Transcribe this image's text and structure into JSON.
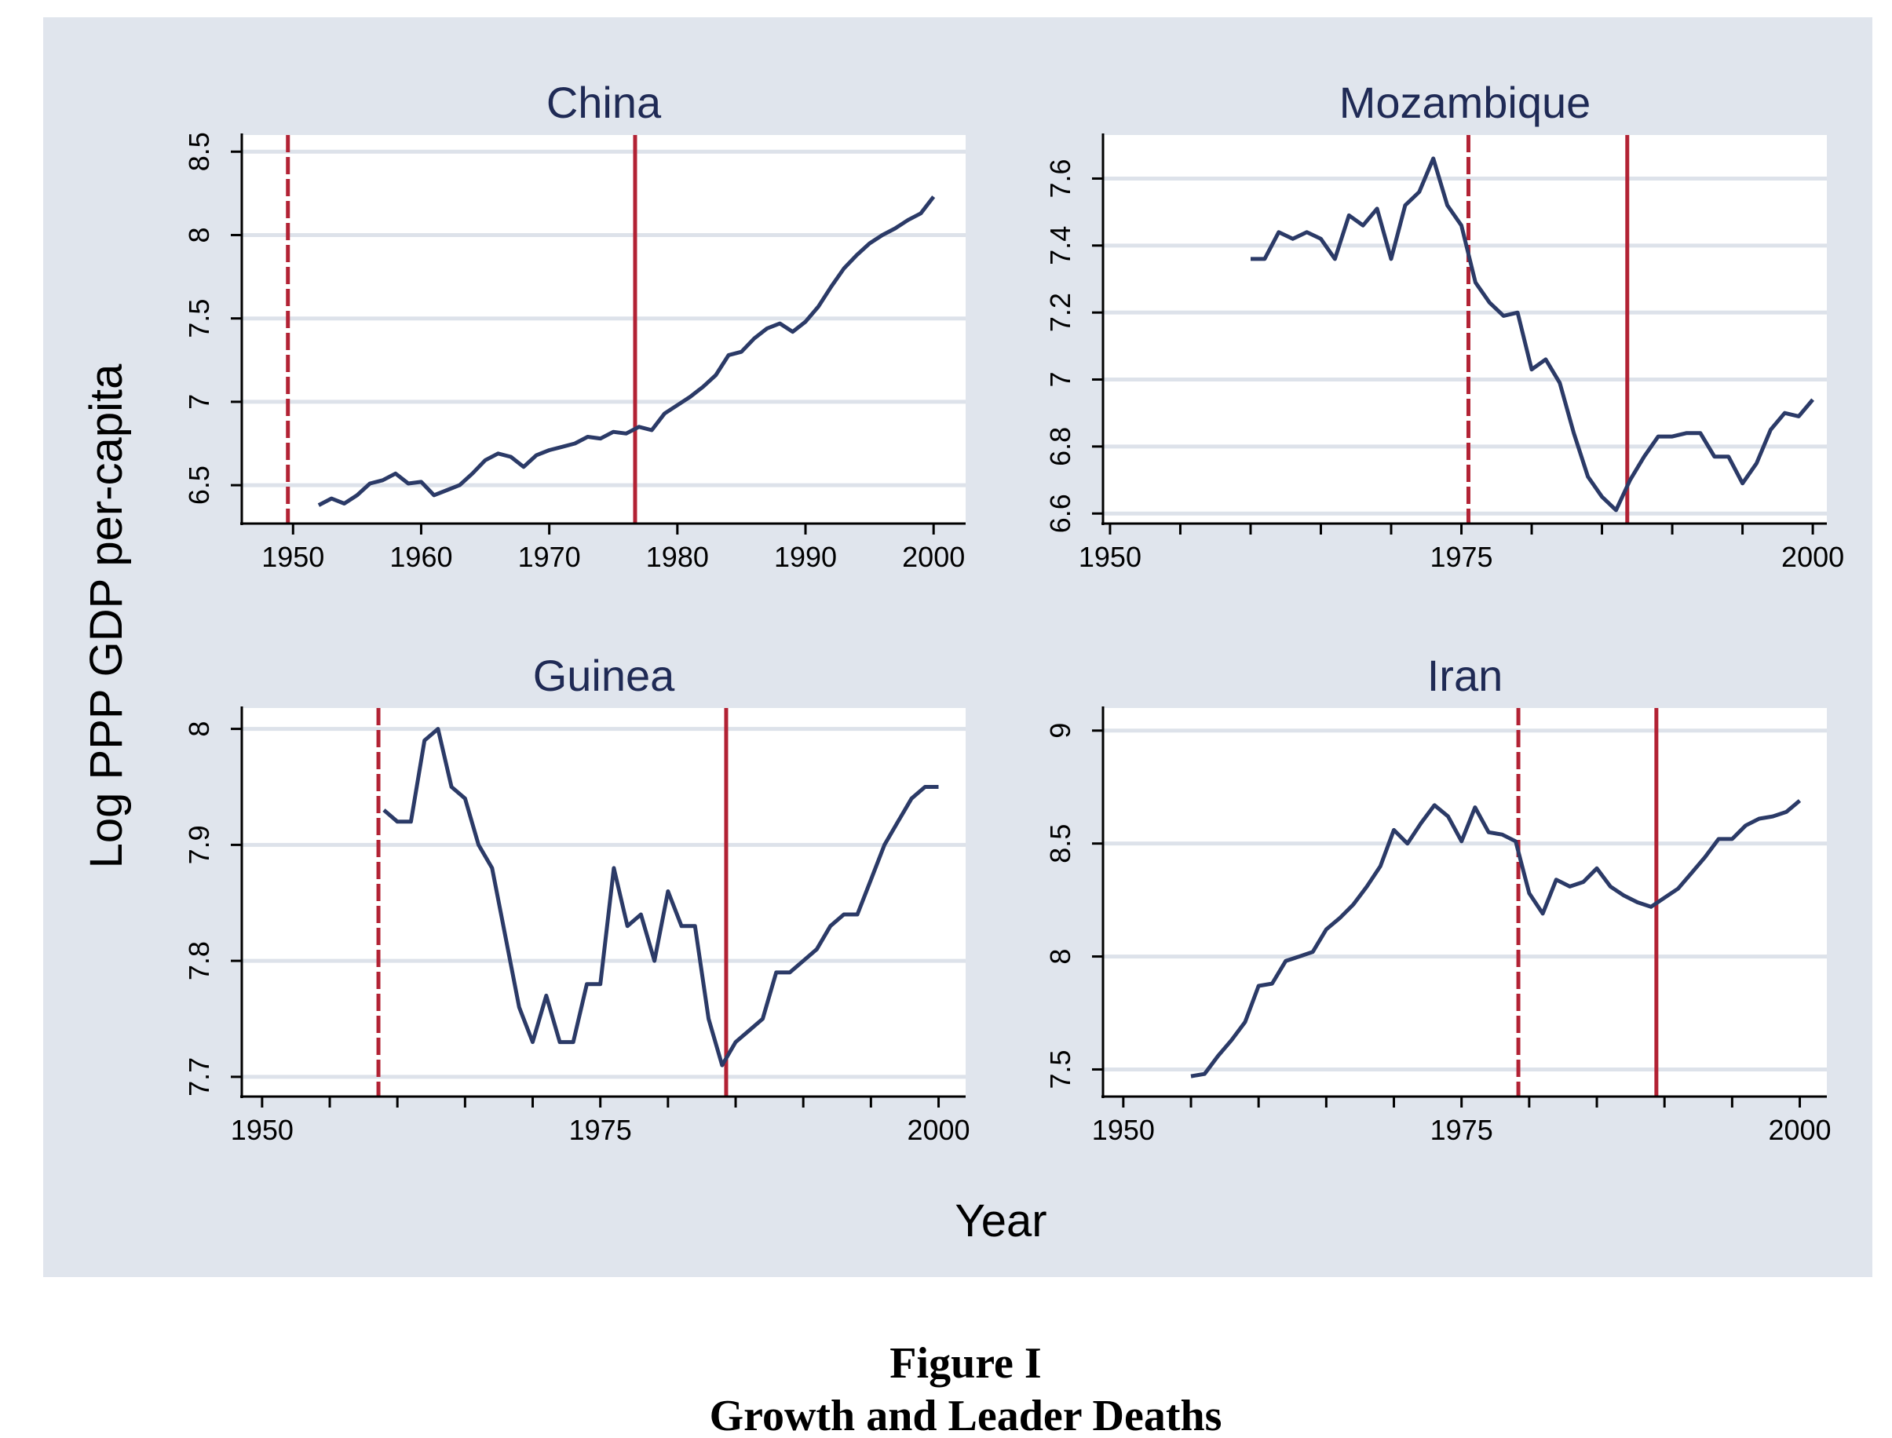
{
  "figure": {
    "xlabel": "Year",
    "ylabel": "Log PPP GDP per-capita",
    "caption_label": "Figure I",
    "caption_title": "Growth and Leader Deaths",
    "colors": {
      "outer_background": "#e0e5ed",
      "plot_background": "#ffffff",
      "gridline": "#dde2ea",
      "series_line": "#2b3a67",
      "leader_line": "#b22234"
    }
  },
  "chart_data": [
    {
      "type": "line",
      "title": "China",
      "xlim": [
        1946,
        2002.5
      ],
      "ylim": [
        6.27,
        8.6
      ],
      "xticks": [
        1950,
        1960,
        1970,
        1980,
        1990,
        2000
      ],
      "xtick_labels": [
        "1950",
        "1960",
        "1970",
        "1980",
        "1990",
        "2000"
      ],
      "yticks": [
        6.5,
        7,
        7.5,
        8,
        8.5
      ],
      "ytick_labels": [
        "6.5",
        "7",
        "7.5",
        "8",
        "8.5"
      ],
      "leader_deaths": [
        {
          "year": 1949.6,
          "style": "dashed"
        },
        {
          "year": 1976.7,
          "style": "solid"
        }
      ],
      "series": [
        {
          "x": [
            1952,
            1953,
            1954,
            1955,
            1956,
            1957,
            1958,
            1959,
            1960,
            1961,
            1962,
            1963,
            1964,
            1965,
            1966,
            1967,
            1968,
            1969,
            1970,
            1971,
            1972,
            1973,
            1974,
            1975,
            1976,
            1977,
            1978,
            1979,
            1980,
            1981,
            1982,
            1983,
            1984,
            1985,
            1986,
            1987,
            1988,
            1989,
            1990,
            1991,
            1992,
            1993,
            1994,
            1995,
            1996,
            1997,
            1998,
            1999,
            2000
          ],
          "y": [
            6.38,
            6.42,
            6.39,
            6.44,
            6.51,
            6.53,
            6.57,
            6.51,
            6.52,
            6.44,
            6.47,
            6.5,
            6.57,
            6.65,
            6.69,
            6.67,
            6.61,
            6.68,
            6.71,
            6.73,
            6.75,
            6.79,
            6.78,
            6.82,
            6.81,
            6.85,
            6.83,
            6.93,
            6.98,
            7.03,
            7.09,
            7.16,
            7.28,
            7.3,
            7.38,
            7.44,
            7.47,
            7.42,
            7.48,
            7.57,
            7.69,
            7.8,
            7.88,
            7.95,
            8.0,
            8.04,
            8.09,
            8.13,
            8.23
          ]
        }
      ]
    },
    {
      "type": "line",
      "title": "Mozambique",
      "xlim": [
        1949.5,
        2001
      ],
      "ylim": [
        6.57,
        7.73
      ],
      "xticks": [
        1950,
        1955,
        1960,
        1965,
        1970,
        1975,
        1980,
        1985,
        1990,
        1995,
        2000
      ],
      "xtick_labels": [
        "1950",
        "",
        "",
        "",
        "",
        "1975",
        "",
        "",
        "",
        "",
        "2000"
      ],
      "yticks": [
        6.6,
        6.8,
        7,
        7.2,
        7.4,
        7.6
      ],
      "ytick_labels": [
        "6.6",
        "6.8",
        "7",
        "7.2",
        "7.4",
        "7.6"
      ],
      "leader_deaths": [
        {
          "year": 1975.5,
          "style": "dashed"
        },
        {
          "year": 1986.8,
          "style": "solid"
        }
      ],
      "series": [
        {
          "x": [
            1960,
            1961,
            1962,
            1963,
            1964,
            1965,
            1966,
            1967,
            1968,
            1969,
            1970,
            1971,
            1972,
            1973,
            1974,
            1975,
            1976,
            1977,
            1978,
            1979,
            1980,
            1981,
            1982,
            1983,
            1984,
            1985,
            1986,
            1987,
            1988,
            1989,
            1990,
            1991,
            1992,
            1993,
            1994,
            1995,
            1996,
            1997,
            1998,
            1999,
            2000
          ],
          "y": [
            7.36,
            7.36,
            7.44,
            7.42,
            7.44,
            7.42,
            7.36,
            7.49,
            7.46,
            7.51,
            7.36,
            7.52,
            7.56,
            7.66,
            7.52,
            7.46,
            7.29,
            7.23,
            7.19,
            7.2,
            7.03,
            7.06,
            6.99,
            6.84,
            6.71,
            6.65,
            6.61,
            6.7,
            6.77,
            6.83,
            6.83,
            6.84,
            6.84,
            6.77,
            6.77,
            6.69,
            6.75,
            6.85,
            6.9,
            6.89,
            6.94
          ]
        }
      ]
    },
    {
      "type": "line",
      "title": "Guinea",
      "xlim": [
        1948.5,
        2002
      ],
      "ylim": [
        7.683,
        8.018
      ],
      "xticks": [
        1950,
        1955,
        1960,
        1965,
        1970,
        1975,
        1980,
        1985,
        1990,
        1995,
        2000
      ],
      "xtick_labels": [
        "1950",
        "",
        "",
        "",
        "",
        "1975",
        "",
        "",
        "",
        "",
        "2000"
      ],
      "yticks": [
        7.7,
        7.8,
        7.9,
        8
      ],
      "ytick_labels": [
        "7.7",
        "7.8",
        "7.9",
        "8"
      ],
      "leader_deaths": [
        {
          "year": 1958.6,
          "style": "dashed"
        },
        {
          "year": 1984.3,
          "style": "solid"
        }
      ],
      "series": [
        {
          "x": [
            1959,
            1960,
            1961,
            1962,
            1963,
            1964,
            1965,
            1966,
            1967,
            1968,
            1969,
            1970,
            1971,
            1972,
            1973,
            1974,
            1975,
            1976,
            1977,
            1978,
            1979,
            1980,
            1981,
            1982,
            1983,
            1984,
            1985,
            1986,
            1987,
            1988,
            1989,
            1990,
            1991,
            1992,
            1993,
            1994,
            1995,
            1996,
            1997,
            1998,
            1999,
            2000
          ],
          "y": [
            7.93,
            7.92,
            7.92,
            7.99,
            8.0,
            7.95,
            7.94,
            7.9,
            7.88,
            7.82,
            7.76,
            7.73,
            7.77,
            7.73,
            7.73,
            7.78,
            7.78,
            7.88,
            7.83,
            7.84,
            7.8,
            7.86,
            7.83,
            7.83,
            7.75,
            7.71,
            7.73,
            7.74,
            7.75,
            7.79,
            7.79,
            7.8,
            7.81,
            7.83,
            7.84,
            7.84,
            7.87,
            7.9,
            7.92,
            7.94,
            7.95,
            7.95
          ]
        }
      ]
    },
    {
      "type": "line",
      "title": "Iran",
      "xlim": [
        1948.5,
        2002
      ],
      "ylim": [
        7.38,
        9.1
      ],
      "xticks": [
        1950,
        1955,
        1960,
        1965,
        1970,
        1975,
        1980,
        1985,
        1990,
        1995,
        2000
      ],
      "xtick_labels": [
        "1950",
        "",
        "",
        "",
        "",
        "1975",
        "",
        "",
        "",
        "",
        "2000"
      ],
      "yticks": [
        7.5,
        8,
        8.5,
        9
      ],
      "ytick_labels": [
        "7.5",
        "8",
        "8.5",
        "9"
      ],
      "leader_deaths": [
        {
          "year": 1979.2,
          "style": "dashed"
        },
        {
          "year": 1989.4,
          "style": "solid"
        }
      ],
      "series": [
        {
          "x": [
            1955,
            1956,
            1957,
            1958,
            1959,
            1960,
            1961,
            1962,
            1963,
            1964,
            1965,
            1966,
            1967,
            1968,
            1969,
            1970,
            1971,
            1972,
            1973,
            1974,
            1975,
            1976,
            1977,
            1978,
            1979,
            1980,
            1981,
            1982,
            1983,
            1984,
            1985,
            1986,
            1987,
            1988,
            1989,
            1990,
            1991,
            1992,
            1993,
            1994,
            1995,
            1996,
            1997,
            1998,
            1999,
            2000
          ],
          "y": [
            7.47,
            7.48,
            7.56,
            7.63,
            7.71,
            7.87,
            7.88,
            7.98,
            8.0,
            8.02,
            8.12,
            8.17,
            8.23,
            8.31,
            8.4,
            8.56,
            8.5,
            8.59,
            8.67,
            8.62,
            8.51,
            8.66,
            8.55,
            8.54,
            8.51,
            8.28,
            8.19,
            8.34,
            8.31,
            8.33,
            8.39,
            8.31,
            8.27,
            8.24,
            8.22,
            8.26,
            8.3,
            8.37,
            8.44,
            8.52,
            8.52,
            8.58,
            8.61,
            8.62,
            8.64,
            8.69
          ]
        }
      ]
    }
  ]
}
